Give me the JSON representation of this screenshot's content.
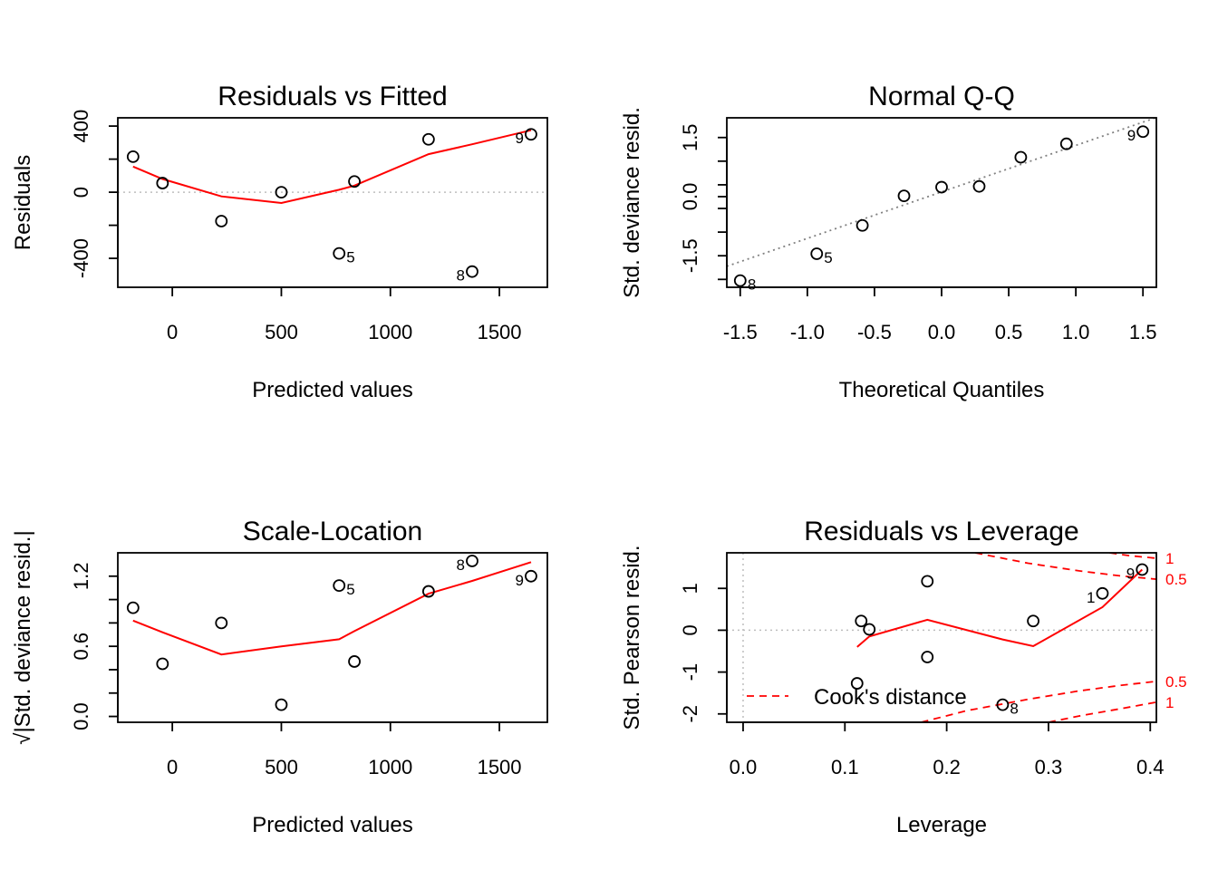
{
  "colors": {
    "points": "#000000",
    "smooth": "#ff0000",
    "refline": "#bebebe",
    "qqline": "#808080",
    "cook": "#ff0000"
  },
  "chart_data": [
    {
      "type": "scatter",
      "title": "Residuals vs Fitted",
      "xlabel": "Predicted values",
      "ylabel": "Residuals",
      "xlim": [
        -250,
        1720
      ],
      "ylim": [
        -575,
        450
      ],
      "xticks": [
        0,
        500,
        1000,
        1500
      ],
      "yticks": [
        -400,
        -200,
        0,
        200,
        400
      ],
      "ytick_labels": [
        "-400",
        "",
        "0",
        "",
        "400"
      ],
      "x": [
        -180,
        -45,
        225,
        500,
        765,
        835,
        1175,
        1375,
        1645
      ],
      "y": [
        215,
        55,
        -175,
        0,
        -370,
        65,
        320,
        -480,
        350
      ],
      "point_labels": [
        {
          "index": 4,
          "text": "5",
          "side": "right"
        },
        {
          "index": 7,
          "text": "8",
          "side": "left"
        },
        {
          "index": 8,
          "text": "9",
          "side": "left"
        }
      ],
      "smooth": {
        "x": [
          -180,
          -45,
          225,
          500,
          765,
          835,
          1175,
          1375,
          1645
        ],
        "y": [
          155,
          80,
          -25,
          -65,
          15,
          40,
          230,
          290,
          375
        ]
      },
      "reference_line": {
        "orientation": "horizontal",
        "value": 0,
        "style": "dotted"
      },
      "grid": false
    },
    {
      "type": "scatter",
      "title": "Normal Q-Q",
      "xlabel": "Theoretical Quantiles",
      "ylabel": "Std. deviance resid.",
      "xlim": [
        -1.6,
        1.6
      ],
      "ylim": [
        -2.3,
        2.0
      ],
      "xticks": [
        -1.5,
        -1.0,
        -0.5,
        0.0,
        0.5,
        1.0,
        1.5
      ],
      "xtick_labels": [
        "-1.5",
        "-1.0",
        "-0.5",
        "0.0",
        "0.5",
        "1.0",
        "1.5"
      ],
      "yticks": [
        -2.1,
        -1.5,
        -0.9,
        -0.3,
        0.0,
        0.3,
        0.9,
        1.5
      ],
      "ytick_labels": [
        "",
        "-1.5",
        "",
        "",
        "0.0",
        "",
        "",
        "1.5"
      ],
      "x": [
        -1.5,
        -0.93,
        -0.59,
        -0.28,
        0.0,
        0.28,
        0.59,
        0.93,
        1.5
      ],
      "y": [
        -2.13,
        -1.45,
        -0.73,
        0.02,
        0.24,
        0.26,
        1.0,
        1.34,
        1.65
      ],
      "point_labels": [
        {
          "index": 0,
          "text": "8",
          "side": "right"
        },
        {
          "index": 1,
          "text": "5",
          "side": "right"
        },
        {
          "index": 8,
          "text": "9",
          "side": "left"
        }
      ],
      "qq_line": {
        "intercept": 0.12,
        "slope": 1.18,
        "style": "dotted"
      },
      "grid": false
    },
    {
      "type": "scatter",
      "title": "Scale-Location",
      "xlabel": "Predicted values",
      "ylabel": "√|Std. deviance resid.|",
      "xlim": [
        -250,
        1720
      ],
      "ylim": [
        -0.05,
        1.4
      ],
      "xticks": [
        0,
        500,
        1000,
        1500
      ],
      "yticks": [
        0.0,
        0.2,
        0.4,
        0.6,
        0.8,
        1.0,
        1.2
      ],
      "ytick_labels": [
        "0.0",
        "",
        "",
        "0.6",
        "",
        "",
        "1.2"
      ],
      "x": [
        -180,
        -45,
        225,
        500,
        765,
        835,
        1175,
        1375,
        1645
      ],
      "y": [
        0.93,
        0.45,
        0.8,
        0.1,
        1.12,
        0.47,
        1.07,
        1.33,
        1.2
      ],
      "point_labels": [
        {
          "index": 4,
          "text": "5",
          "side": "right"
        },
        {
          "index": 7,
          "text": "8",
          "side": "left"
        },
        {
          "index": 8,
          "text": "9",
          "side": "left"
        }
      ],
      "smooth": {
        "x": [
          -180,
          -45,
          225,
          500,
          765,
          835,
          1175,
          1375,
          1645
        ],
        "y": [
          0.82,
          0.72,
          0.53,
          0.6,
          0.66,
          0.73,
          1.05,
          1.16,
          1.32
        ]
      },
      "grid": false
    },
    {
      "type": "scatter",
      "title": "Residuals vs Leverage",
      "xlabel": "Leverage",
      "ylabel": "Std. Pearson resid.",
      "xlim": [
        -0.016,
        0.406
      ],
      "ylim": [
        -2.2,
        1.85
      ],
      "xticks": [
        0.0,
        0.1,
        0.2,
        0.3,
        0.4
      ],
      "xtick_labels": [
        "0.0",
        "0.1",
        "0.2",
        "0.3",
        "0.4"
      ],
      "yticks": [
        -2,
        -1,
        0,
        1
      ],
      "ytick_labels": [
        "-2",
        "-1",
        "0",
        "1"
      ],
      "x": [
        0.112,
        0.116,
        0.124,
        0.181,
        0.181,
        0.255,
        0.285,
        0.353,
        0.392
      ],
      "y": [
        -1.27,
        0.22,
        0.02,
        1.17,
        -0.64,
        -1.78,
        0.22,
        0.88,
        1.45
      ],
      "point_labels": [
        {
          "index": 5,
          "text": "8",
          "side": "right"
        },
        {
          "index": 7,
          "text": "1",
          "side": "left"
        },
        {
          "index": 8,
          "text": "9",
          "side": "left"
        }
      ],
      "smooth": {
        "x": [
          0.112,
          0.124,
          0.181,
          0.255,
          0.285,
          0.353,
          0.392
        ],
        "y": [
          -0.4,
          -0.15,
          0.25,
          -0.22,
          -0.38,
          0.55,
          1.45
        ]
      },
      "reference_lines": [
        {
          "orientation": "horizontal",
          "value": 0,
          "style": "dotted"
        },
        {
          "orientation": "vertical",
          "value": 0,
          "style": "dotted"
        }
      ],
      "cook_contours": [
        {
          "level": "0.5",
          "label": "0.5",
          "sign": 1,
          "x": [
            0.228,
            0.28,
            0.33,
            0.37,
            0.406
          ],
          "y": [
            1.85,
            1.6,
            1.42,
            1.3,
            1.22
          ]
        },
        {
          "level": "1",
          "label": "1",
          "sign": 1,
          "x": [
            0.36,
            0.38,
            0.406
          ],
          "y": [
            1.85,
            1.78,
            1.72
          ]
        },
        {
          "level": "0.5",
          "label": "0.5",
          "sign": -1,
          "x": [
            0.175,
            0.22,
            0.28,
            0.33,
            0.37,
            0.406
          ],
          "y": [
            -2.2,
            -1.92,
            -1.65,
            -1.45,
            -1.32,
            -1.22
          ]
        },
        {
          "level": "1",
          "label": "1",
          "sign": -1,
          "x": [
            0.3,
            0.33,
            0.37,
            0.406
          ],
          "y": [
            -2.2,
            -2.05,
            -1.88,
            -1.72
          ]
        }
      ],
      "legend": {
        "label": "Cook's distance",
        "placement": "bottom-left",
        "style": "dashed"
      },
      "grid": false
    }
  ]
}
